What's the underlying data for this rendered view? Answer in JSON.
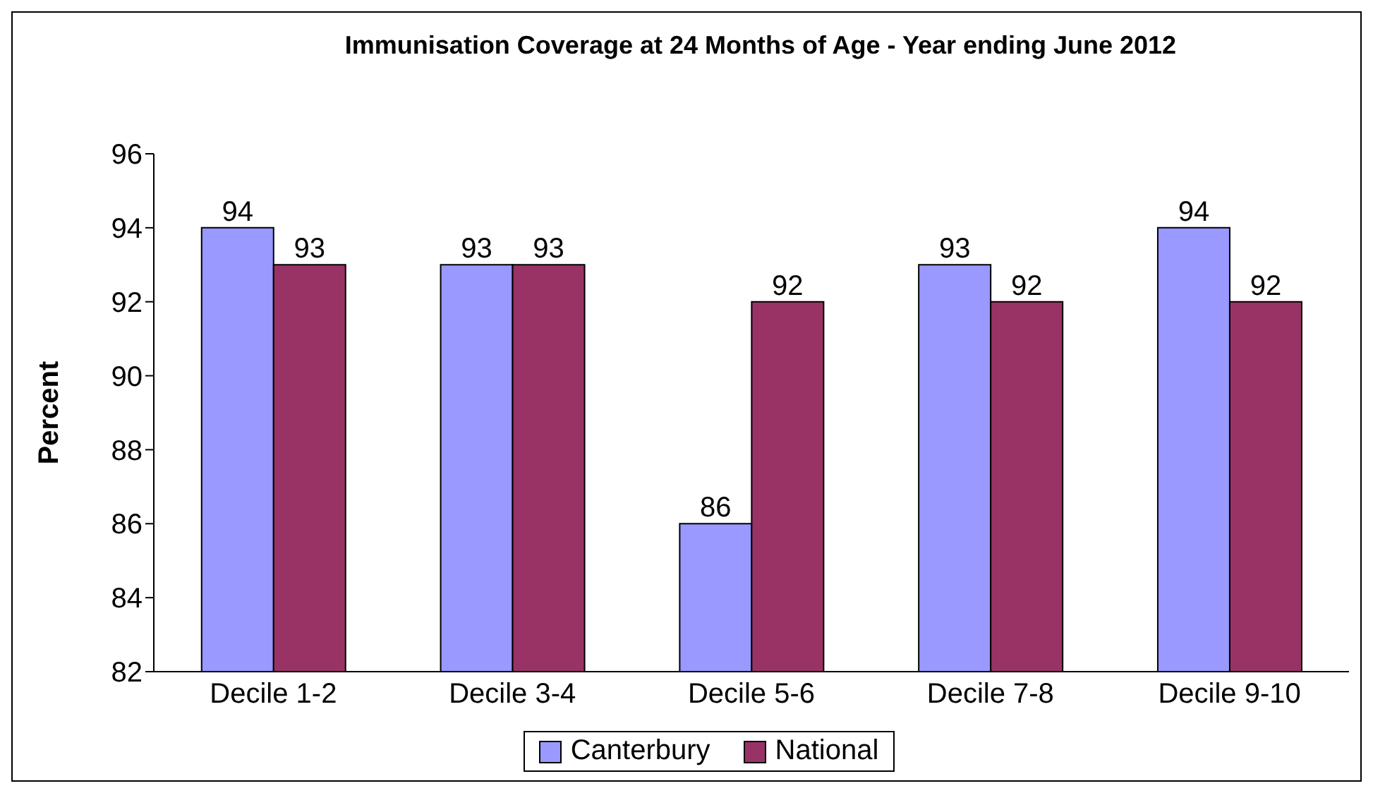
{
  "chart_data": {
    "type": "bar",
    "title": "Immunisation Coverage at 24 Months of Age - Year ending June 2012",
    "ylabel": "Percent",
    "categories": [
      "Decile 1-2",
      "Decile 3-4",
      "Decile 5-6",
      "Decile 7-8",
      "Decile 9-10"
    ],
    "series": [
      {
        "name": "Canterbury",
        "color": "#9999ff",
        "values": [
          94,
          93,
          86,
          93,
          94
        ]
      },
      {
        "name": "National",
        "color": "#993366",
        "values": [
          93,
          93,
          92,
          92,
          92
        ]
      }
    ],
    "ylim": [
      82,
      96
    ],
    "yticks": [
      82,
      84,
      86,
      88,
      90,
      92,
      94,
      96
    ],
    "grid": false,
    "legend": "bottom",
    "data_labels": true
  }
}
